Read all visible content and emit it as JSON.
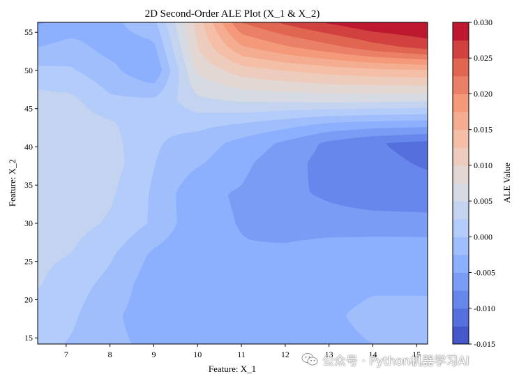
{
  "chart_data": {
    "type": "heatmap",
    "subtype": "filled-contour",
    "title": "2D Second-Order ALE Plot (X_1 & X_2)",
    "xlabel": "Feature: X_1",
    "ylabel": "Feature: X_2",
    "xlim": [
      6.35,
      15.25
    ],
    "ylim": [
      14.2,
      56.3
    ],
    "x_ticks": [
      7,
      8,
      9,
      10,
      11,
      12,
      13,
      14,
      15
    ],
    "y_ticks": [
      15,
      20,
      25,
      30,
      35,
      40,
      45,
      50,
      55
    ],
    "grid": false,
    "colormap": "coolwarm",
    "colorbar": {
      "label": "ALE Value",
      "range": [
        -0.015,
        0.03
      ],
      "ticks": [
        "-0.015",
        "-0.010",
        "-0.005",
        "0.000",
        "0.005",
        "0.010",
        "0.015",
        "0.020",
        "0.025",
        "0.030"
      ],
      "levels": [
        -0.015,
        -0.0125,
        -0.01,
        -0.0075,
        -0.005,
        -0.0025,
        0.0,
        0.0025,
        0.005,
        0.0075,
        0.01,
        0.0125,
        0.015,
        0.0175,
        0.02,
        0.0225,
        0.025,
        0.0275,
        0.03
      ]
    },
    "x": [
      6.35,
      7.1,
      8.0,
      9.0,
      10.0,
      11.0,
      12.0,
      13.0,
      14.0,
      15.25
    ],
    "y": [
      14.2,
      18.0,
      22.0,
      26.0,
      30.0,
      34.0,
      38.0,
      40.5,
      43.0,
      46.0,
      50.0,
      53.0,
      56.3
    ],
    "z": [
      [
        0.0007,
        -0.0002,
        -0.002,
        -0.003,
        -0.0045,
        -0.0047,
        -0.004,
        -0.003,
        -0.0025,
        -0.0025
      ],
      [
        0.0013,
        0.0005,
        -0.002,
        -0.0038,
        -0.0045,
        -0.0045,
        -0.0038,
        -0.0028,
        -0.002,
        -0.002
      ],
      [
        0.0027,
        0.0012,
        -0.0008,
        -0.004,
        -0.0047,
        -0.0048,
        -0.004,
        -0.0033,
        -0.0028,
        -0.0028
      ],
      [
        0.0031,
        0.0025,
        0.0004,
        -0.003,
        -0.0046,
        -0.0048,
        -0.0042,
        -0.0032,
        -0.003,
        -0.0031
      ],
      [
        0.0037,
        0.0034,
        0.0022,
        -0.0004,
        -0.0044,
        -0.0051,
        -0.0065,
        -0.0066,
        -0.0066,
        -0.0066
      ],
      [
        0.004,
        0.0038,
        0.0029,
        -0.0004,
        -0.0046,
        -0.0052,
        -0.007,
        -0.0079,
        -0.0088,
        -0.0092
      ],
      [
        0.0045,
        0.0041,
        0.0037,
        0.0001,
        -0.0021,
        -0.0044,
        -0.0065,
        -0.0085,
        -0.0094,
        -0.0103
      ],
      [
        0.0045,
        0.0038,
        0.0034,
        0.0003,
        -0.0011,
        -0.0034,
        -0.0055,
        -0.0081,
        -0.0098,
        -0.0108
      ],
      [
        0.0043,
        0.004,
        0.0029,
        0.0004,
        0.0007,
        -0.0002,
        -0.0015,
        -0.003,
        -0.0036,
        -0.004
      ],
      [
        0.0036,
        0.0032,
        0.0005,
        0.0005,
        0.0043,
        0.0052,
        0.0053,
        0.0055,
        0.0054,
        0.0051
      ],
      [
        0.0006,
        0.0003,
        -0.0017,
        -0.005,
        0.008,
        0.0112,
        0.0125,
        0.0135,
        0.0142,
        0.0147
      ],
      [
        -0.0025,
        -0.0015,
        -0.0035,
        -0.0032,
        0.01,
        0.017,
        0.0195,
        0.0215,
        0.0238,
        0.0258
      ],
      [
        -0.0053,
        -0.0042,
        -0.0032,
        -0.0008,
        0.011,
        0.0225,
        0.0255,
        0.0278,
        0.0296,
        0.0305
      ]
    ]
  },
  "watermark": "公众号 · Python机器学习AI"
}
